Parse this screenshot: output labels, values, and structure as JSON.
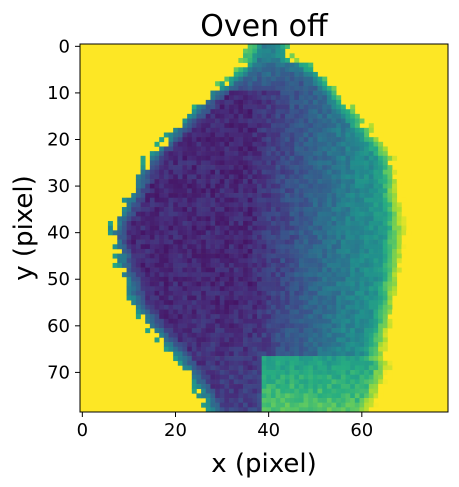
{
  "chart_data": {
    "type": "heatmap",
    "title": "Oven off",
    "xlabel": "x (pixel)",
    "ylabel": "y (pixel)",
    "xlim": [
      -0.5,
      78.5
    ],
    "ylim": [
      78.5,
      -0.5
    ],
    "x_ticks": [
      0,
      20,
      40,
      60
    ],
    "y_ticks": [
      0,
      10,
      20,
      30,
      40,
      50,
      60,
      70
    ],
    "x_tick_labels": [
      "0",
      "20",
      "40",
      "60"
    ],
    "y_tick_labels": [
      "0",
      "10",
      "20",
      "30",
      "40",
      "50",
      "60",
      "70"
    ],
    "grid_size": [
      79,
      79
    ],
    "colormap": "viridis",
    "value_range": [
      0,
      1
    ],
    "background_value": 1.0,
    "grid": false,
    "legend": "none",
    "regions": [
      {
        "name": "dark sample region",
        "value_range": [
          0.08,
          0.3
        ],
        "center_xy": [
          28,
          42
        ]
      },
      {
        "name": "mid sample region",
        "value_range": [
          0.3,
          0.55
        ],
        "center_xy": [
          52,
          40
        ]
      },
      {
        "name": "upper neck region",
        "value_range": [
          0.45,
          0.7
        ],
        "center_xy": [
          40,
          6
        ]
      },
      {
        "name": "lower lobe region",
        "value_range": [
          0.55,
          0.85
        ],
        "center_xy": [
          48,
          74
        ]
      }
    ]
  }
}
